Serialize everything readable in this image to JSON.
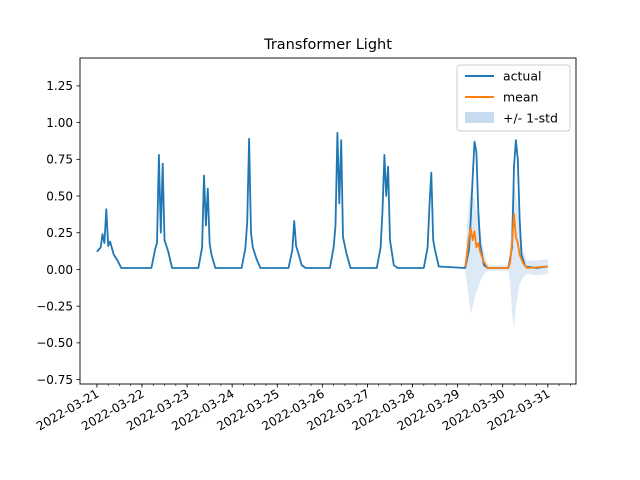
{
  "chart_data": {
    "type": "line",
    "title": "Transformer Light",
    "xlabel": "",
    "ylabel": "",
    "grid": false,
    "legend_position": "top-right",
    "x_range": [
      "2022-03-20T15:00",
      "2022-03-31T15:00"
    ],
    "ylim": [
      -0.78,
      1.44
    ],
    "y_ticks": [
      -0.75,
      -0.5,
      -0.25,
      0.0,
      0.25,
      0.5,
      0.75,
      1.0,
      1.25
    ],
    "y_tick_labels": [
      "−0.75",
      "−0.50",
      "−0.25",
      "0.00",
      "0.25",
      "0.50",
      "0.75",
      "1.00",
      "1.25"
    ],
    "x_ticks": [
      "2022-03-21",
      "2022-03-22",
      "2022-03-23",
      "2022-03-24",
      "2022-03-25",
      "2022-03-26",
      "2022-03-27",
      "2022-03-28",
      "2022-03-29",
      "2022-03-30",
      "2022-03-31"
    ],
    "x_tick_labels": [
      "2022-03-21",
      "2022-03-22",
      "2022-03-23",
      "2022-03-24",
      "2022-03-25",
      "2022-03-26",
      "2022-03-27",
      "2022-03-28",
      "2022-03-29",
      "2022-03-30",
      "2022-03-31"
    ],
    "colors": {
      "actual": "#1f77b4",
      "mean": "#ff7f0e",
      "band": "#c6dbef"
    },
    "series": [
      {
        "name": "actual",
        "type": "line",
        "points": [
          [
            "2022-03-21T00:00",
            0.12
          ],
          [
            "2022-03-21T02:00",
            0.15
          ],
          [
            "2022-03-21T03:00",
            0.24
          ],
          [
            "2022-03-21T04:00",
            0.18
          ],
          [
            "2022-03-21T05:00",
            0.41
          ],
          [
            "2022-03-21T06:00",
            0.16
          ],
          [
            "2022-03-21T07:00",
            0.19
          ],
          [
            "2022-03-21T09:00",
            0.1
          ],
          [
            "2022-03-21T11:00",
            0.06
          ],
          [
            "2022-03-21T13:00",
            0.01
          ],
          [
            "2022-03-22T05:00",
            0.01
          ],
          [
            "2022-03-22T07:00",
            0.14
          ],
          [
            "2022-03-22T08:00",
            0.18
          ],
          [
            "2022-03-22T09:00",
            0.78
          ],
          [
            "2022-03-22T10:00",
            0.25
          ],
          [
            "2022-03-22T11:00",
            0.72
          ],
          [
            "2022-03-22T12:00",
            0.2
          ],
          [
            "2022-03-22T14:00",
            0.12
          ],
          [
            "2022-03-22T16:00",
            0.01
          ],
          [
            "2022-03-23T06:00",
            0.01
          ],
          [
            "2022-03-23T08:00",
            0.15
          ],
          [
            "2022-03-23T09:00",
            0.64
          ],
          [
            "2022-03-23T10:00",
            0.3
          ],
          [
            "2022-03-23T11:00",
            0.55
          ],
          [
            "2022-03-23T12:00",
            0.18
          ],
          [
            "2022-03-23T13:00",
            0.1
          ],
          [
            "2022-03-23T15:00",
            0.01
          ],
          [
            "2022-03-24T05:00",
            0.01
          ],
          [
            "2022-03-24T07:00",
            0.14
          ],
          [
            "2022-03-24T08:00",
            0.32
          ],
          [
            "2022-03-24T09:00",
            0.89
          ],
          [
            "2022-03-24T10:00",
            0.25
          ],
          [
            "2022-03-24T11:00",
            0.15
          ],
          [
            "2022-03-24T13:00",
            0.07
          ],
          [
            "2022-03-24T15:00",
            0.01
          ],
          [
            "2022-03-25T06:00",
            0.01
          ],
          [
            "2022-03-25T08:00",
            0.13
          ],
          [
            "2022-03-25T09:00",
            0.33
          ],
          [
            "2022-03-25T10:00",
            0.16
          ],
          [
            "2022-03-25T11:00",
            0.12
          ],
          [
            "2022-03-25T13:00",
            0.03
          ],
          [
            "2022-03-25T15:00",
            0.01
          ],
          [
            "2022-03-26T04:00",
            0.01
          ],
          [
            "2022-03-26T06:00",
            0.15
          ],
          [
            "2022-03-26T07:00",
            0.3
          ],
          [
            "2022-03-26T08:00",
            0.93
          ],
          [
            "2022-03-26T09:00",
            0.45
          ],
          [
            "2022-03-26T10:00",
            0.88
          ],
          [
            "2022-03-26T11:00",
            0.22
          ],
          [
            "2022-03-26T13:00",
            0.1
          ],
          [
            "2022-03-26T15:00",
            0.01
          ],
          [
            "2022-03-27T05:00",
            0.01
          ],
          [
            "2022-03-27T07:00",
            0.15
          ],
          [
            "2022-03-27T08:00",
            0.4
          ],
          [
            "2022-03-27T09:00",
            0.78
          ],
          [
            "2022-03-27T10:00",
            0.5
          ],
          [
            "2022-03-27T11:00",
            0.7
          ],
          [
            "2022-03-27T12:00",
            0.2
          ],
          [
            "2022-03-27T14:00",
            0.03
          ],
          [
            "2022-03-27T16:00",
            0.01
          ],
          [
            "2022-03-28T06:00",
            0.01
          ],
          [
            "2022-03-28T08:00",
            0.15
          ],
          [
            "2022-03-28T09:00",
            0.44
          ],
          [
            "2022-03-28T10:00",
            0.66
          ],
          [
            "2022-03-28T11:00",
            0.2
          ],
          [
            "2022-03-28T12:00",
            0.13
          ],
          [
            "2022-03-28T14:00",
            0.02
          ],
          [
            "2022-03-29T04:00",
            0.01
          ],
          [
            "2022-03-29T06:00",
            0.13
          ],
          [
            "2022-03-29T07:00",
            0.35
          ],
          [
            "2022-03-29T08:00",
            0.63
          ],
          [
            "2022-03-29T09:00",
            0.87
          ],
          [
            "2022-03-29T10:00",
            0.8
          ],
          [
            "2022-03-29T11:00",
            0.4
          ],
          [
            "2022-03-29T12:00",
            0.17
          ],
          [
            "2022-03-29T14:00",
            0.03
          ],
          [
            "2022-03-29T16:00",
            0.01
          ],
          [
            "2022-03-30T03:00",
            0.01
          ],
          [
            "2022-03-30T05:00",
            0.15
          ],
          [
            "2022-03-30T06:00",
            0.7
          ],
          [
            "2022-03-30T07:00",
            0.88
          ],
          [
            "2022-03-30T08:00",
            0.75
          ],
          [
            "2022-03-30T09:00",
            0.35
          ],
          [
            "2022-03-30T10:00",
            0.1
          ],
          [
            "2022-03-30T12:00",
            0.02
          ],
          [
            "2022-03-30T18:00",
            0.01
          ],
          [
            "2022-03-31T00:00",
            0.02
          ]
        ]
      },
      {
        "name": "mean",
        "type": "line",
        "points": [
          [
            "2022-03-29T04:00",
            0.02
          ],
          [
            "2022-03-29T05:00",
            0.1
          ],
          [
            "2022-03-29T06:00",
            0.22
          ],
          [
            "2022-03-29T07:00",
            0.28
          ],
          [
            "2022-03-29T08:00",
            0.2
          ],
          [
            "2022-03-29T09:00",
            0.26
          ],
          [
            "2022-03-29T10:00",
            0.15
          ],
          [
            "2022-03-29T11:00",
            0.18
          ],
          [
            "2022-03-29T12:00",
            0.12
          ],
          [
            "2022-03-29T14:00",
            0.05
          ],
          [
            "2022-03-29T16:00",
            0.01
          ],
          [
            "2022-03-30T03:00",
            0.01
          ],
          [
            "2022-03-30T04:00",
            0.05
          ],
          [
            "2022-03-30T05:00",
            0.18
          ],
          [
            "2022-03-30T06:00",
            0.38
          ],
          [
            "2022-03-30T07:00",
            0.22
          ],
          [
            "2022-03-30T08:00",
            0.18
          ],
          [
            "2022-03-30T09:00",
            0.1
          ],
          [
            "2022-03-30T11:00",
            0.04
          ],
          [
            "2022-03-30T13:00",
            0.01
          ],
          [
            "2022-03-31T00:00",
            0.02
          ]
        ]
      },
      {
        "name": "+/- 1-std",
        "type": "band",
        "points": [
          [
            "2022-03-29T04:00",
            -0.02,
            0.06
          ],
          [
            "2022-03-29T05:00",
            -0.1,
            0.3
          ],
          [
            "2022-03-29T06:00",
            -0.2,
            0.45
          ],
          [
            "2022-03-29T07:00",
            -0.3,
            0.55
          ],
          [
            "2022-03-29T08:00",
            -0.25,
            0.5
          ],
          [
            "2022-03-29T09:00",
            -0.2,
            0.48
          ],
          [
            "2022-03-29T10:00",
            -0.15,
            0.4
          ],
          [
            "2022-03-29T11:00",
            -0.12,
            0.35
          ],
          [
            "2022-03-29T12:00",
            -0.08,
            0.28
          ],
          [
            "2022-03-29T14:00",
            -0.03,
            0.12
          ],
          [
            "2022-03-29T16:00",
            -0.01,
            0.03
          ],
          [
            "2022-03-30T03:00",
            -0.01,
            0.03
          ],
          [
            "2022-03-30T04:00",
            -0.1,
            0.18
          ],
          [
            "2022-03-30T05:00",
            -0.3,
            0.45
          ],
          [
            "2022-03-30T06:00",
            -0.4,
            0.62
          ],
          [
            "2022-03-30T07:00",
            -0.25,
            0.5
          ],
          [
            "2022-03-30T08:00",
            -0.18,
            0.4
          ],
          [
            "2022-03-30T09:00",
            -0.1,
            0.28
          ],
          [
            "2022-03-30T11:00",
            -0.05,
            0.12
          ],
          [
            "2022-03-30T13:00",
            -0.03,
            0.06
          ],
          [
            "2022-03-30T18:00",
            -0.04,
            0.06
          ],
          [
            "2022-03-31T00:00",
            -0.03,
            0.07
          ]
        ]
      }
    ]
  }
}
